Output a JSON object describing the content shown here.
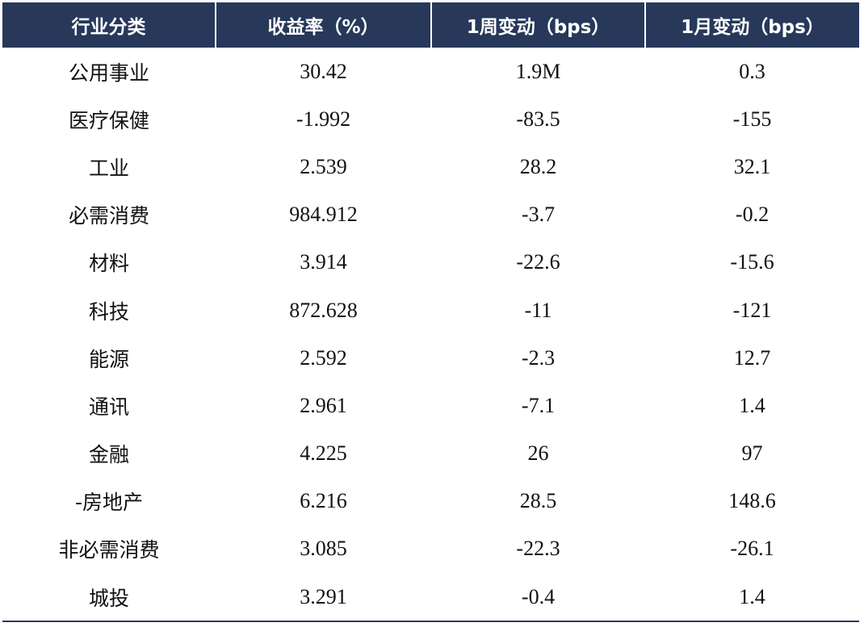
{
  "table": {
    "headers": [
      "行业分类",
      "收益率（%）",
      "1周变动（bps）",
      "1月变动（bps）"
    ],
    "rows": [
      {
        "sector": "公用事业",
        "yield": "30.42",
        "wk_change": "1.9M",
        "mo_change": "0.3"
      },
      {
        "sector": "医疗保健",
        "yield": "-1.992",
        "wk_change": "-83.5",
        "mo_change": "-155"
      },
      {
        "sector": "工业",
        "yield": "2.539",
        "wk_change": "28.2",
        "mo_change": "32.1"
      },
      {
        "sector": "必需消费",
        "yield": "984.912",
        "wk_change": "-3.7",
        "mo_change": "-0.2"
      },
      {
        "sector": "材料",
        "yield": "3.914",
        "wk_change": "-22.6",
        "mo_change": "-15.6"
      },
      {
        "sector": "科技",
        "yield": "872.628",
        "wk_change": "-11",
        "mo_change": "-121"
      },
      {
        "sector": "能源",
        "yield": "2.592",
        "wk_change": "-2.3",
        "mo_change": "12.7"
      },
      {
        "sector": "通讯",
        "yield": "2.961",
        "wk_change": "-7.1",
        "mo_change": "1.4"
      },
      {
        "sector": "金融",
        "yield": "4.225",
        "wk_change": "26",
        "mo_change": "97"
      },
      {
        "sector": "-房地产",
        "yield": "6.216",
        "wk_change": "28.5",
        "mo_change": "148.6"
      },
      {
        "sector": "非必需消费",
        "yield": "3.085",
        "wk_change": "-22.3",
        "mo_change": "-26.1"
      },
      {
        "sector": "城投",
        "yield": "3.291",
        "wk_change": "-0.4",
        "mo_change": "1.4"
      }
    ],
    "colors": {
      "header_bg": "#27385a",
      "header_text": "#ffffff",
      "body_text": "#111111"
    }
  }
}
